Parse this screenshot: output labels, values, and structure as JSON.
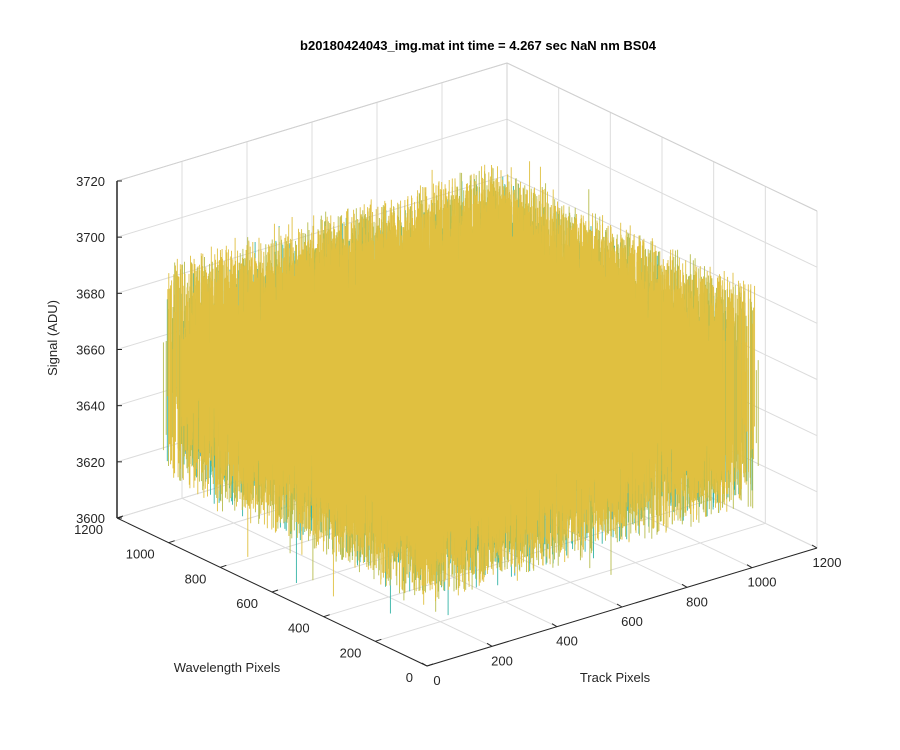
{
  "chart_data": {
    "type": "surface3d",
    "title": "b20180424043_img.mat int time = 4.267 sec  NaN nm BS04",
    "xlabel": "Track Pixels",
    "ylabel": "Wavelength Pixels",
    "zlabel": "Signal (ADU)",
    "xlim": [
      0,
      1200
    ],
    "ylim": [
      0,
      1200
    ],
    "zlim": [
      3600,
      3720
    ],
    "xticks": [
      "0",
      "200",
      "400",
      "600",
      "800",
      "1000",
      "1200"
    ],
    "yticks": [
      "0",
      "200",
      "400",
      "600",
      "800",
      "1000",
      "1200"
    ],
    "zticks": [
      "3600",
      "3620",
      "3640",
      "3660",
      "3680",
      "3700",
      "3720"
    ],
    "data_extent": {
      "x": [
        0,
        1024
      ],
      "y": [
        0,
        1024
      ]
    },
    "signal": {
      "typical_min": 3620,
      "typical_max": 3700,
      "mean": 3660,
      "peak_outliers": 3705,
      "low_outliers": 3605
    },
    "grid": true,
    "view": "3-D (azimuth -37.5, elevation 30)",
    "colormap": [
      "#0072bd",
      "#1ba1c7",
      "#35b4a6",
      "#b8bd4e",
      "#e0c040"
    ]
  }
}
